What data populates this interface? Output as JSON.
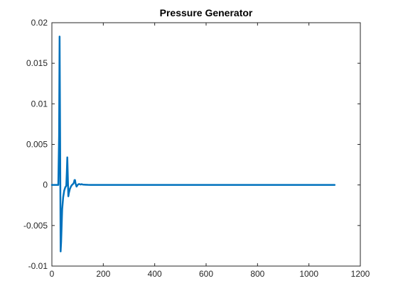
{
  "chart_data": {
    "type": "line",
    "title": "Pressure Generator",
    "xlabel": "",
    "ylabel": "",
    "xlim": [
      0,
      1200
    ],
    "ylim": [
      -0.01,
      0.02
    ],
    "x_ticks": [
      0,
      200,
      400,
      600,
      800,
      1000,
      1200
    ],
    "y_ticks": [
      -0.01,
      -0.005,
      0,
      0.005,
      0.01,
      0.015,
      0.02
    ],
    "x_tick_labels": [
      "0",
      "200",
      "400",
      "600",
      "800",
      "1000",
      "1200"
    ],
    "y_tick_labels": [
      "-0.01",
      "-0.005",
      "0",
      "0.005",
      "0.01",
      "0.015",
      "0.02"
    ],
    "grid": false,
    "colors": {
      "line": "#0072BD",
      "axes": "#262626",
      "background": "#ffffff"
    },
    "series": [
      {
        "x": [
          0,
          25,
          28,
          30,
          32,
          34,
          36,
          38,
          40,
          44,
          48,
          52,
          56,
          58,
          60,
          62,
          64,
          66,
          70,
          74,
          78,
          82,
          86,
          88,
          90,
          92,
          96,
          100,
          104,
          108,
          112,
          116,
          120,
          130,
          140,
          150,
          1100
        ],
        "y": [
          0,
          0,
          0.006,
          0.0183,
          0.006,
          -0.0082,
          -0.007,
          -0.005,
          -0.003,
          -0.0015,
          -0.0007,
          -0.0003,
          -0.0001,
          0.0015,
          0.0034,
          0.001,
          -0.0014,
          -0.001,
          -0.0005,
          -0.0002,
          0,
          0.0001,
          0.0003,
          0.0006,
          0.0006,
          0.0002,
          -0.0002,
          0,
          0.0001,
          0.0001,
          5e-05,
          0.0001,
          5e-05,
          3e-05,
          1e-05,
          0,
          0
        ]
      }
    ]
  }
}
